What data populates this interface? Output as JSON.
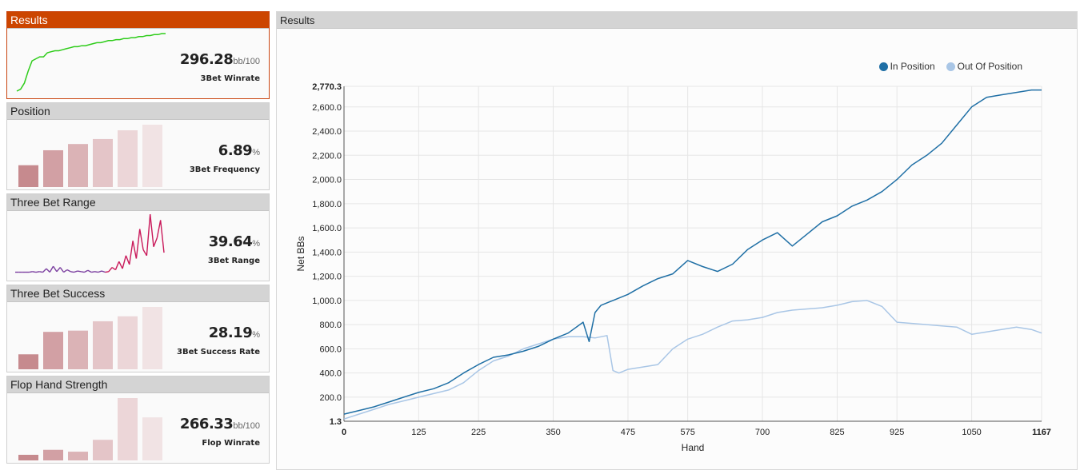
{
  "sidebar": {
    "cards": [
      {
        "title": "Results",
        "value": "296.28",
        "unit": "bb/100",
        "label": "3Bet Winrate",
        "active": true
      },
      {
        "title": "Position",
        "value": "6.89",
        "unit": "%",
        "label": "3Bet Frequency",
        "active": false
      },
      {
        "title": "Three Bet Range",
        "value": "39.64",
        "unit": "%",
        "label": "3Bet Range",
        "active": false
      },
      {
        "title": "Three Bet Success",
        "value": "28.19",
        "unit": "%",
        "label": "3Bet Success Rate",
        "active": false
      },
      {
        "title": "Flop Hand Strength",
        "value": "266.33",
        "unit": "bb/100",
        "label": "Flop Winrate",
        "active": false
      }
    ]
  },
  "main": {
    "title": "Results"
  },
  "colors": {
    "accent": "#cc4500",
    "in_position": "#1f6fa5",
    "out_of_position": "#a9c6e6",
    "mini_line": "#2ecc1a",
    "mini_bars": [
      "#c68a8e",
      "#d2a0a4",
      "#dbb3b6",
      "#e4c5c8",
      "#ecd6d8",
      "#f1e3e4"
    ],
    "range_line_low": "#7b3fa0",
    "range_line_high": "#c9195a"
  },
  "mini_charts": {
    "results_line": [
      0,
      2,
      8,
      20,
      30,
      32,
      34,
      34,
      38,
      39,
      40,
      40,
      41,
      42,
      43,
      44,
      44,
      45,
      45,
      46,
      47,
      48,
      48,
      49,
      50,
      50,
      51,
      51,
      52,
      52,
      53,
      53,
      54,
      54,
      55,
      55,
      56,
      56,
      57,
      57
    ],
    "position_bars": [
      0.35,
      0.59,
      0.69,
      0.77,
      0.91,
      1.0
    ],
    "range_line": [
      0.02,
      0.02,
      0.02,
      0.02,
      0.02,
      0.03,
      0.02,
      0.03,
      0.02,
      0.08,
      0.02,
      0.12,
      0.03,
      0.1,
      0.02,
      0.06,
      0.03,
      0.02,
      0.04,
      0.03,
      0.02,
      0.05,
      0.02,
      0.03,
      0.02,
      0.04,
      0.02,
      0.03,
      0.1,
      0.06,
      0.2,
      0.08,
      0.3,
      0.15,
      0.55,
      0.25,
      0.75,
      0.4,
      0.3,
      1.0,
      0.45,
      0.6,
      0.9,
      0.35
    ],
    "success_bars": [
      0.24,
      0.6,
      0.62,
      0.77,
      0.85,
      1.0
    ],
    "hand_strength_bars": [
      0.09,
      0.17,
      0.14,
      0.33,
      1.0,
      0.69
    ]
  },
  "chart_data": {
    "type": "line",
    "xlabel": "Hand",
    "ylabel": "Net BBs",
    "xlim": [
      0,
      1167
    ],
    "ylim": [
      1.3,
      2770.3
    ],
    "x_ticks": [
      "0",
      "125",
      "225",
      "350",
      "475",
      "575",
      "700",
      "825",
      "925",
      "1050",
      "1167"
    ],
    "y_ticks": [
      "1.3",
      "200.0",
      "400.0",
      "600.0",
      "800.0",
      "1,000.0",
      "1,200.0",
      "1,400.0",
      "1,600.0",
      "1,800.0",
      "2,000.0",
      "2,200.0",
      "2,400.0",
      "2,600.0",
      "2,770.3"
    ],
    "grid": true,
    "legend_position": "top-right",
    "series": [
      {
        "name": "In Position",
        "x": [
          0,
          25,
          50,
          75,
          100,
          125,
          150,
          175,
          200,
          225,
          250,
          275,
          300,
          325,
          350,
          375,
          400,
          410,
          420,
          430,
          450,
          475,
          500,
          525,
          550,
          575,
          600,
          625,
          650,
          675,
          700,
          725,
          750,
          775,
          800,
          825,
          850,
          875,
          900,
          925,
          950,
          975,
          1000,
          1025,
          1050,
          1075,
          1100,
          1125,
          1150,
          1167
        ],
        "values": [
          60,
          90,
          120,
          160,
          200,
          240,
          270,
          320,
          400,
          470,
          530,
          550,
          580,
          620,
          680,
          730,
          820,
          660,
          900,
          960,
          1000,
          1050,
          1120,
          1180,
          1220,
          1330,
          1280,
          1240,
          1300,
          1420,
          1500,
          1560,
          1450,
          1550,
          1650,
          1700,
          1780,
          1830,
          1900,
          2000,
          2120,
          2200,
          2300,
          2450,
          2600,
          2680,
          2700,
          2720,
          2740,
          2740
        ]
      },
      {
        "name": "Out Of Position",
        "x": [
          0,
          25,
          50,
          75,
          100,
          125,
          150,
          175,
          200,
          225,
          250,
          275,
          300,
          325,
          350,
          375,
          400,
          420,
          440,
          450,
          460,
          475,
          500,
          525,
          550,
          575,
          600,
          625,
          650,
          675,
          700,
          725,
          750,
          775,
          800,
          825,
          850,
          875,
          900,
          925,
          950,
          975,
          1000,
          1025,
          1050,
          1075,
          1100,
          1125,
          1150,
          1167
        ],
        "values": [
          20,
          60,
          100,
          140,
          170,
          200,
          230,
          260,
          320,
          420,
          500,
          540,
          600,
          640,
          680,
          700,
          700,
          690,
          710,
          420,
          400,
          430,
          450,
          470,
          600,
          680,
          720,
          780,
          830,
          840,
          860,
          900,
          920,
          930,
          940,
          960,
          990,
          1000,
          950,
          820,
          810,
          800,
          790,
          780,
          720,
          740,
          760,
          780,
          760,
          730
        ]
      }
    ]
  }
}
